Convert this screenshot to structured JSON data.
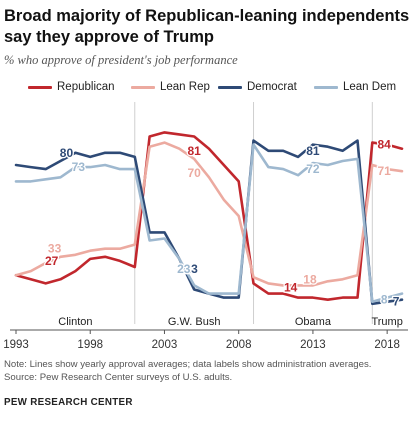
{
  "header": {
    "title": "Broad majority of Republican-leaning independents say they approve of Trump",
    "subtitle": "% who approve of president's job performance"
  },
  "footer": {
    "note": "Note: Lines show yearly approval averages; data labels show administration averages.",
    "source": "Source: Pew Research Center surveys of U.S. adults.",
    "brand": "PEW RESEARCH CENTER"
  },
  "chart_data": {
    "type": "line",
    "title": "Broad majority of Republican-leaning independents say they approve of Trump",
    "subtitle": "% who approve of president's job performance",
    "xlabel": "",
    "ylabel": "",
    "xlim": [
      1993,
      2019
    ],
    "ylim": [
      0,
      100
    ],
    "grid": false,
    "legend_position": "top",
    "x_ticks": [
      1993,
      1998,
      2003,
      2008,
      2013,
      2018
    ],
    "x": [
      1993,
      1994,
      1995,
      1996,
      1997,
      1998,
      1999,
      2000,
      2001,
      2002,
      2003,
      2004,
      2005,
      2006,
      2007,
      2008,
      2009,
      2010,
      2011,
      2012,
      2013,
      2014,
      2015,
      2016,
      2017,
      2018,
      2019
    ],
    "series": [
      {
        "name": "Republican",
        "color": "#c1272d",
        "values": [
          20,
          18,
          16,
          18,
          22,
          28,
          29,
          27,
          24,
          88,
          90,
          89,
          88,
          82,
          74,
          66,
          16,
          11,
          11,
          9,
          9,
          8,
          9,
          9,
          85,
          84,
          82
        ]
      },
      {
        "name": "Lean Rep",
        "color": "#ecaaa0",
        "values": [
          20,
          22,
          26,
          29,
          30,
          32,
          33,
          33,
          35,
          83,
          85,
          82,
          77,
          68,
          57,
          49,
          19,
          16,
          15,
          15,
          15,
          17,
          18,
          20,
          74,
          72,
          71
        ]
      },
      {
        "name": "Democrat",
        "color": "#2e4a76",
        "values": [
          74,
          73,
          72,
          76,
          80,
          78,
          80,
          80,
          78,
          41,
          41,
          28,
          13,
          11,
          9,
          9,
          86,
          81,
          81,
          78,
          84,
          83,
          81,
          86,
          6,
          7,
          8
        ]
      },
      {
        "name": "Lean Dem",
        "color": "#9eb8cf",
        "values": [
          66,
          66,
          67,
          68,
          73,
          73,
          74,
          72,
          72,
          37,
          38,
          28,
          15,
          11,
          11,
          11,
          84,
          73,
          72,
          69,
          75,
          74,
          76,
          77,
          7,
          9,
          11
        ]
      }
    ],
    "data_labels": [
      {
        "series": "Democrat",
        "x": 1996.4,
        "y": 80,
        "text": "80"
      },
      {
        "series": "Lean Dem",
        "x": 1997.2,
        "y": 73,
        "text": "73"
      },
      {
        "series": "Lean Rep",
        "x": 1995.6,
        "y": 33,
        "text": "33"
      },
      {
        "series": "Republican",
        "x": 1995.4,
        "y": 27,
        "text": "27"
      },
      {
        "series": "Republican",
        "x": 2005.0,
        "y": 81,
        "text": "81"
      },
      {
        "series": "Lean Rep",
        "x": 2005.0,
        "y": 70,
        "text": "70"
      },
      {
        "series": "Democrat",
        "x": 2004.8,
        "y": 23,
        "text": "23"
      },
      {
        "series": "Lean Dem",
        "x": 2004.3,
        "y": 23,
        "text": "23"
      },
      {
        "series": "Democrat",
        "x": 2013.0,
        "y": 81,
        "text": "81"
      },
      {
        "series": "Lean Dem",
        "x": 2013.0,
        "y": 72,
        "text": "72"
      },
      {
        "series": "Lean Rep",
        "x": 2012.8,
        "y": 18,
        "text": "18"
      },
      {
        "series": "Republican",
        "x": 2011.5,
        "y": 14,
        "text": "14"
      },
      {
        "series": "Republican",
        "x": 2017.8,
        "y": 84,
        "text": "84"
      },
      {
        "series": "Lean Rep",
        "x": 2017.8,
        "y": 71,
        "text": "71"
      },
      {
        "series": "Lean Dem",
        "x": 2017.8,
        "y": 8,
        "text": "8"
      },
      {
        "series": "Democrat",
        "x": 2018.6,
        "y": 7,
        "text": "7"
      }
    ],
    "administrations": [
      {
        "label": "Clinton",
        "start": 1993,
        "end": 2001
      },
      {
        "label": "G.W. Bush",
        "start": 2001,
        "end": 2009
      },
      {
        "label": "Obama",
        "start": 2009,
        "end": 2017
      },
      {
        "label": "Trump",
        "start": 2017,
        "end": 2019
      }
    ]
  }
}
